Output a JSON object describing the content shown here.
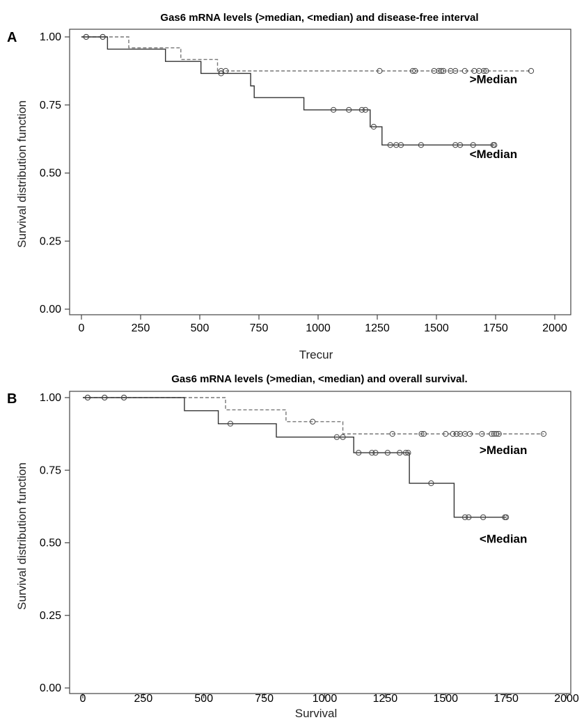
{
  "chart_data": [
    {
      "type": "line",
      "panel": "A",
      "title": "Gas6 mRNA levels (>median, <median) and disease-free interval",
      "xlabel": "Trecur",
      "ylabel": "Survival distribution function",
      "xlim": [
        0,
        2000
      ],
      "ylim": [
        0,
        1
      ],
      "xticks": [
        "0",
        "250",
        "500",
        "750",
        "1000",
        "1250",
        "1500",
        "1750",
        "2000"
      ],
      "yticks": [
        "0.00",
        "0.25",
        "0.50",
        "0.75",
        "1.00"
      ],
      "grid": false,
      "series": [
        {
          "name": ">Median",
          "style": "dashed",
          "color": "#777777",
          "steps": [
            [
              0,
              1.0
            ],
            [
              200,
              0.96
            ],
            [
              420,
              0.917
            ],
            [
              575,
              0.875
            ],
            [
              1900,
              0.875
            ]
          ],
          "censored": [
            [
              20,
              1.0
            ],
            [
              90,
              1.0
            ],
            [
              590,
              0.875
            ],
            [
              610,
              0.875
            ],
            [
              1260,
              0.875
            ],
            [
              1400,
              0.875
            ],
            [
              1410,
              0.875
            ],
            [
              1490,
              0.875
            ],
            [
              1510,
              0.875
            ],
            [
              1520,
              0.875
            ],
            [
              1530,
              0.875
            ],
            [
              1560,
              0.875
            ],
            [
              1580,
              0.875
            ],
            [
              1620,
              0.875
            ],
            [
              1660,
              0.875
            ],
            [
              1680,
              0.875
            ],
            [
              1700,
              0.875
            ],
            [
              1710,
              0.875
            ],
            [
              1900,
              0.875
            ]
          ]
        },
        {
          "name": "<Median",
          "style": "solid",
          "color": "#333333",
          "steps": [
            [
              0,
              1.0
            ],
            [
              110,
              0.955
            ],
            [
              355,
              0.91
            ],
            [
              505,
              0.866
            ],
            [
              715,
              0.82
            ],
            [
              730,
              0.777
            ],
            [
              940,
              0.732
            ],
            [
              1220,
              0.67
            ],
            [
              1270,
              0.603
            ],
            [
              1745,
              0.603
            ]
          ],
          "censored": [
            [
              20,
              1.0
            ],
            [
              90,
              1.0
            ],
            [
              590,
              0.866
            ],
            [
              1065,
              0.732
            ],
            [
              1130,
              0.732
            ],
            [
              1185,
              0.732
            ],
            [
              1200,
              0.732
            ],
            [
              1235,
              0.67
            ],
            [
              1305,
              0.603
            ],
            [
              1330,
              0.603
            ],
            [
              1350,
              0.603
            ],
            [
              1435,
              0.603
            ],
            [
              1580,
              0.603
            ],
            [
              1600,
              0.603
            ],
            [
              1655,
              0.603
            ],
            [
              1740,
              0.603
            ],
            [
              1745,
              0.603
            ]
          ]
        }
      ],
      "annotations": [
        {
          "text": ">Median",
          "x": 1640,
          "y": 0.83
        },
        {
          "text": "<Median",
          "x": 1640,
          "y": 0.555
        }
      ]
    },
    {
      "type": "line",
      "panel": "B",
      "title": "Gas6 mRNA levels (>median, <median) and overall survival.",
      "xlabel": "Survival",
      "ylabel": "Survival distribution function",
      "xlim": [
        0,
        2000
      ],
      "ylim": [
        0,
        1
      ],
      "xticks": [
        "0",
        "250",
        "500",
        "750",
        "1000",
        "1250",
        "1500",
        "1750",
        "2000"
      ],
      "yticks": [
        "0.00",
        "0.25",
        "0.50",
        "0.75",
        "1.00"
      ],
      "grid": false,
      "series": [
        {
          "name": ">Median",
          "style": "dashed",
          "color": "#777777",
          "steps": [
            [
              0,
              1.0
            ],
            [
              590,
              0.958
            ],
            [
              840,
              0.917
            ],
            [
              1075,
              0.875
            ],
            [
              1905,
              0.875
            ]
          ],
          "censored": [
            [
              20,
              1.0
            ],
            [
              90,
              1.0
            ],
            [
              170,
              1.0
            ],
            [
              950,
              0.917
            ],
            [
              1280,
              0.875
            ],
            [
              1400,
              0.875
            ],
            [
              1410,
              0.875
            ],
            [
              1500,
              0.875
            ],
            [
              1530,
              0.875
            ],
            [
              1545,
              0.875
            ],
            [
              1560,
              0.875
            ],
            [
              1580,
              0.875
            ],
            [
              1600,
              0.875
            ],
            [
              1650,
              0.875
            ],
            [
              1690,
              0.875
            ],
            [
              1700,
              0.875
            ],
            [
              1710,
              0.875
            ],
            [
              1720,
              0.875
            ],
            [
              1905,
              0.875
            ]
          ]
        },
        {
          "name": "<Median",
          "style": "solid",
          "color": "#333333",
          "steps": [
            [
              0,
              1.0
            ],
            [
              420,
              0.955
            ],
            [
              560,
              0.91
            ],
            [
              800,
              0.864
            ],
            [
              1120,
              0.81
            ],
            [
              1350,
              0.705
            ],
            [
              1535,
              0.588
            ],
            [
              1750,
              0.588
            ]
          ],
          "censored": [
            [
              20,
              1.0
            ],
            [
              90,
              1.0
            ],
            [
              170,
              1.0
            ],
            [
              610,
              0.91
            ],
            [
              1050,
              0.864
            ],
            [
              1075,
              0.864
            ],
            [
              1140,
              0.81
            ],
            [
              1195,
              0.81
            ],
            [
              1210,
              0.81
            ],
            [
              1260,
              0.81
            ],
            [
              1310,
              0.81
            ],
            [
              1335,
              0.81
            ],
            [
              1345,
              0.81
            ],
            [
              1440,
              0.705
            ],
            [
              1580,
              0.588
            ],
            [
              1595,
              0.588
            ],
            [
              1655,
              0.588
            ],
            [
              1745,
              0.588
            ],
            [
              1750,
              0.588
            ]
          ]
        }
      ],
      "annotations": [
        {
          "text": ">Median",
          "x": 1640,
          "y": 0.806
        },
        {
          "text": "<Median",
          "x": 1640,
          "y": 0.5
        }
      ]
    }
  ]
}
